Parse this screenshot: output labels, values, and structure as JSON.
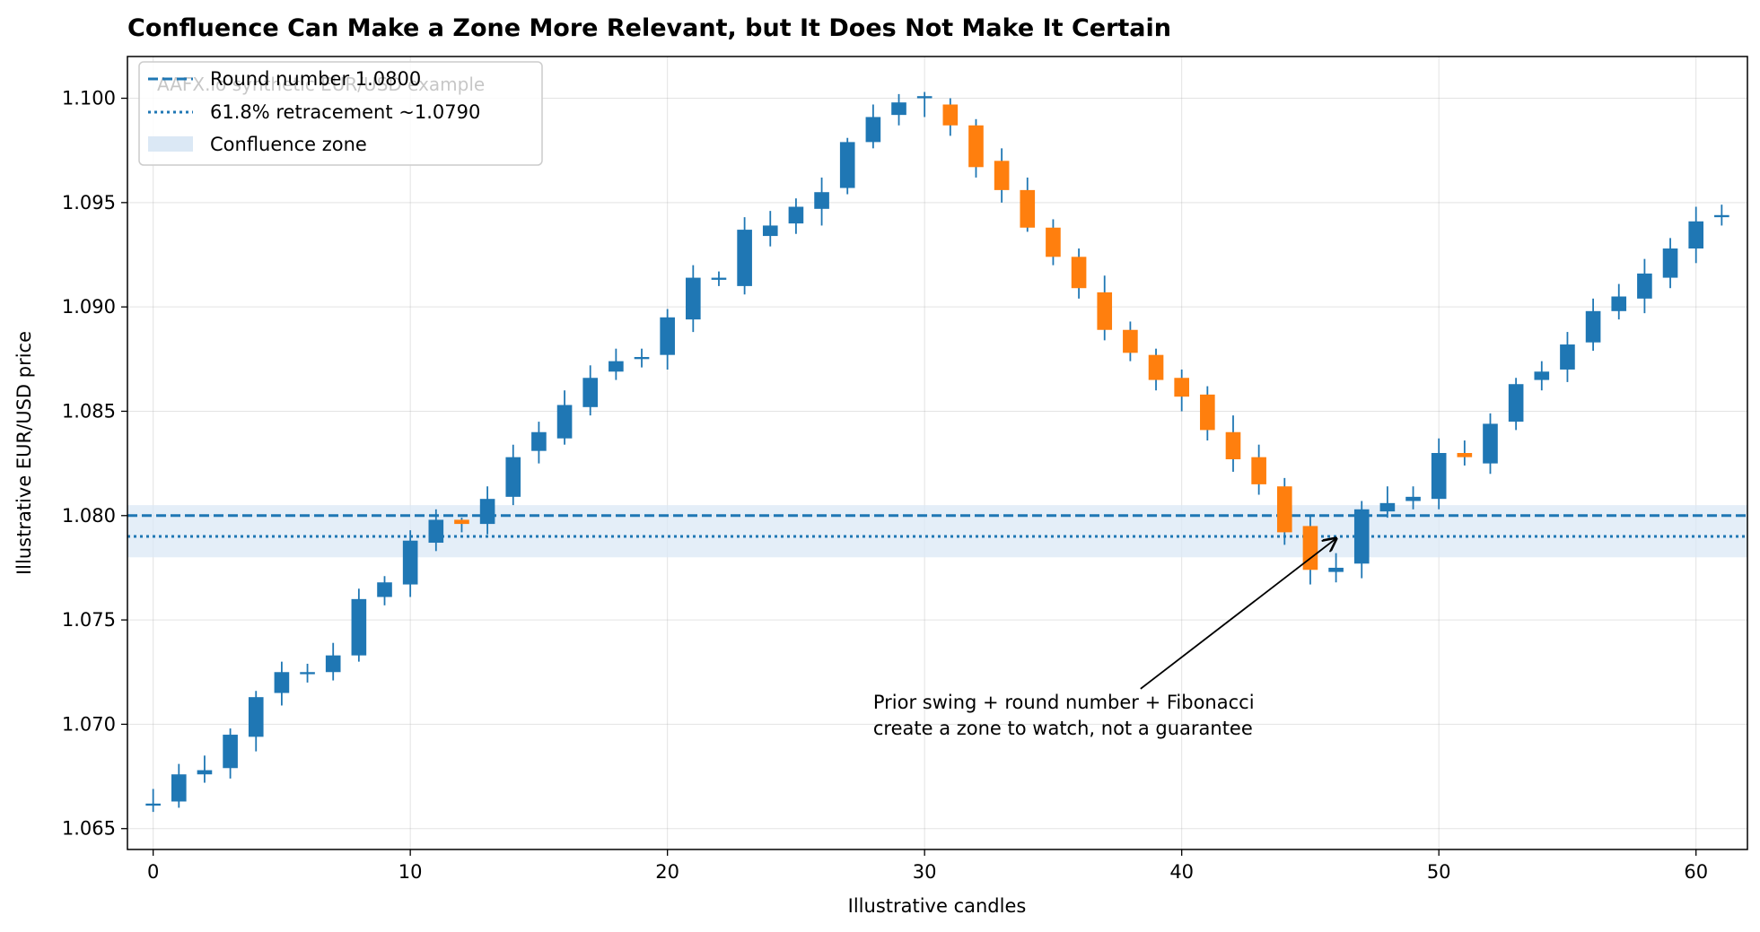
{
  "chart_data": {
    "type": "candlestick",
    "title": "Confluence Can Make a Zone More Relevant, but It Does Not Make It Certain",
    "xlabel": "Illustrative candles",
    "ylabel": "Illustrative EUR/USD price",
    "xlim": [
      -1,
      62
    ],
    "ylim": [
      1.064,
      1.102
    ],
    "x_ticks": [
      0,
      10,
      20,
      30,
      40,
      50,
      60
    ],
    "x_tick_labels": [
      "0",
      "10",
      "20",
      "30",
      "40",
      "50",
      "60"
    ],
    "y_ticks": [
      1.065,
      1.07,
      1.075,
      1.08,
      1.085,
      1.09,
      1.095,
      1.1
    ],
    "y_tick_labels": [
      "1.065",
      "1.070",
      "1.075",
      "1.080",
      "1.085",
      "1.090",
      "1.095",
      "1.100"
    ],
    "grid": true,
    "colors": {
      "up": "#1f77b4",
      "down": "#ff7f0e",
      "line": "#1f77b4",
      "zone": "#dbe8f5"
    },
    "watermark": "AAFX.io synthetic EUR/USD example",
    "legend": {
      "placement": "top-left",
      "entries": [
        {
          "label": "Round number 1.0800",
          "style": "dashed"
        },
        {
          "label": "61.8% retracement ~1.0790",
          "style": "dotted"
        },
        {
          "label": "Confluence zone",
          "style": "patch"
        }
      ]
    },
    "hlines": [
      {
        "y": 1.08,
        "style": "dashed"
      },
      {
        "y": 1.079,
        "style": "dotted"
      }
    ],
    "zone": {
      "y_low": 1.078,
      "y_high": 1.0805
    },
    "annotation": {
      "lines": [
        "Prior swing + round number + Fibonacci",
        "create a zone to watch, not a guarantee"
      ],
      "text_at": [
        28,
        1.0705
      ],
      "arrow_to": [
        46,
        1.0789
      ]
    },
    "candles": [
      {
        "x": 0,
        "o": 1.0661,
        "c": 1.0662,
        "h": 1.0669,
        "l": 1.0658
      },
      {
        "x": 1,
        "o": 1.0663,
        "c": 1.0676,
        "h": 1.0681,
        "l": 1.066
      },
      {
        "x": 2,
        "o": 1.0676,
        "c": 1.0678,
        "h": 1.0685,
        "l": 1.0672
      },
      {
        "x": 3,
        "o": 1.0679,
        "c": 1.0695,
        "h": 1.0698,
        "l": 1.0674
      },
      {
        "x": 4,
        "o": 1.0694,
        "c": 1.0713,
        "h": 1.0716,
        "l": 1.0687
      },
      {
        "x": 5,
        "o": 1.0715,
        "c": 1.0725,
        "h": 1.073,
        "l": 1.0709
      },
      {
        "x": 6,
        "o": 1.0724,
        "c": 1.0725,
        "h": 1.0729,
        "l": 1.072
      },
      {
        "x": 7,
        "o": 1.0725,
        "c": 1.0733,
        "h": 1.0739,
        "l": 1.0721
      },
      {
        "x": 8,
        "o": 1.0733,
        "c": 1.076,
        "h": 1.0765,
        "l": 1.073
      },
      {
        "x": 9,
        "o": 1.0761,
        "c": 1.0768,
        "h": 1.0771,
        "l": 1.0757
      },
      {
        "x": 10,
        "o": 1.0767,
        "c": 1.0788,
        "h": 1.0793,
        "l": 1.0761
      },
      {
        "x": 11,
        "o": 1.0787,
        "c": 1.0798,
        "h": 1.0803,
        "l": 1.0783
      },
      {
        "x": 12,
        "o": 1.0798,
        "c": 1.0796,
        "h": 1.0799,
        "l": 1.0792
      },
      {
        "x": 13,
        "o": 1.0796,
        "c": 1.0808,
        "h": 1.0814,
        "l": 1.0791
      },
      {
        "x": 14,
        "o": 1.0809,
        "c": 1.0828,
        "h": 1.0834,
        "l": 1.0805
      },
      {
        "x": 15,
        "o": 1.0831,
        "c": 1.084,
        "h": 1.0845,
        "l": 1.0825
      },
      {
        "x": 16,
        "o": 1.0837,
        "c": 1.0853,
        "h": 1.086,
        "l": 1.0834
      },
      {
        "x": 17,
        "o": 1.0852,
        "c": 1.0866,
        "h": 1.0872,
        "l": 1.0848
      },
      {
        "x": 18,
        "o": 1.0869,
        "c": 1.0874,
        "h": 1.088,
        "l": 1.0865
      },
      {
        "x": 19,
        "o": 1.0875,
        "c": 1.0876,
        "h": 1.088,
        "l": 1.0871
      },
      {
        "x": 20,
        "o": 1.0877,
        "c": 1.0895,
        "h": 1.0899,
        "l": 1.087
      },
      {
        "x": 21,
        "o": 1.0894,
        "c": 1.0914,
        "h": 1.092,
        "l": 1.0888
      },
      {
        "x": 22,
        "o": 1.0913,
        "c": 1.0914,
        "h": 1.0917,
        "l": 1.091
      },
      {
        "x": 23,
        "o": 1.091,
        "c": 1.0937,
        "h": 1.0943,
        "l": 1.0906
      },
      {
        "x": 24,
        "o": 1.0934,
        "c": 1.0939,
        "h": 1.0946,
        "l": 1.0929
      },
      {
        "x": 25,
        "o": 1.094,
        "c": 1.0948,
        "h": 1.0952,
        "l": 1.0935
      },
      {
        "x": 26,
        "o": 1.0947,
        "c": 1.0955,
        "h": 1.0962,
        "l": 1.0939
      },
      {
        "x": 27,
        "o": 1.0957,
        "c": 1.0979,
        "h": 1.0981,
        "l": 1.0954
      },
      {
        "x": 28,
        "o": 1.0979,
        "c": 1.0991,
        "h": 1.0997,
        "l": 1.0976
      },
      {
        "x": 29,
        "o": 1.0992,
        "c": 1.0998,
        "h": 1.1002,
        "l": 1.0987
      },
      {
        "x": 30,
        "o": 1.1,
        "c": 1.1001,
        "h": 1.1003,
        "l": 1.0991
      },
      {
        "x": 31,
        "o": 1.0997,
        "c": 1.0987,
        "h": 1.1,
        "l": 1.0982
      },
      {
        "x": 32,
        "o": 1.0987,
        "c": 1.0967,
        "h": 1.099,
        "l": 1.0962
      },
      {
        "x": 33,
        "o": 1.097,
        "c": 1.0956,
        "h": 1.0976,
        "l": 1.095
      },
      {
        "x": 34,
        "o": 1.0956,
        "c": 1.0938,
        "h": 1.0962,
        "l": 1.0936
      },
      {
        "x": 35,
        "o": 1.0938,
        "c": 1.0924,
        "h": 1.0942,
        "l": 1.092
      },
      {
        "x": 36,
        "o": 1.0924,
        "c": 1.0909,
        "h": 1.0928,
        "l": 1.0904
      },
      {
        "x": 37,
        "o": 1.0907,
        "c": 1.0889,
        "h": 1.0915,
        "l": 1.0884
      },
      {
        "x": 38,
        "o": 1.0889,
        "c": 1.0878,
        "h": 1.0893,
        "l": 1.0874
      },
      {
        "x": 39,
        "o": 1.0877,
        "c": 1.0865,
        "h": 1.088,
        "l": 1.086
      },
      {
        "x": 40,
        "o": 1.0866,
        "c": 1.0857,
        "h": 1.087,
        "l": 1.085
      },
      {
        "x": 41,
        "o": 1.0858,
        "c": 1.0841,
        "h": 1.0862,
        "l": 1.0836
      },
      {
        "x": 42,
        "o": 1.084,
        "c": 1.0827,
        "h": 1.0848,
        "l": 1.0821
      },
      {
        "x": 43,
        "o": 1.0828,
        "c": 1.0815,
        "h": 1.0834,
        "l": 1.081
      },
      {
        "x": 44,
        "o": 1.0814,
        "c": 1.0792,
        "h": 1.0818,
        "l": 1.0786
      },
      {
        "x": 45,
        "o": 1.0795,
        "c": 1.0774,
        "h": 1.08,
        "l": 1.0767
      },
      {
        "x": 46,
        "o": 1.0773,
        "c": 1.0775,
        "h": 1.0782,
        "l": 1.0768
      },
      {
        "x": 47,
        "o": 1.0777,
        "c": 1.0803,
        "h": 1.0807,
        "l": 1.077
      },
      {
        "x": 48,
        "o": 1.0802,
        "c": 1.0806,
        "h": 1.0814,
        "l": 1.0799
      },
      {
        "x": 49,
        "o": 1.0807,
        "c": 1.0809,
        "h": 1.0814,
        "l": 1.0803
      },
      {
        "x": 50,
        "o": 1.0808,
        "c": 1.083,
        "h": 1.0837,
        "l": 1.0803
      },
      {
        "x": 51,
        "o": 1.083,
        "c": 1.0828,
        "h": 1.0836,
        "l": 1.0824
      },
      {
        "x": 52,
        "o": 1.0825,
        "c": 1.0844,
        "h": 1.0849,
        "l": 1.082
      },
      {
        "x": 53,
        "o": 1.0845,
        "c": 1.0863,
        "h": 1.0866,
        "l": 1.0841
      },
      {
        "x": 54,
        "o": 1.0865,
        "c": 1.0869,
        "h": 1.0874,
        "l": 1.086
      },
      {
        "x": 55,
        "o": 1.087,
        "c": 1.0882,
        "h": 1.0888,
        "l": 1.0864
      },
      {
        "x": 56,
        "o": 1.0883,
        "c": 1.0898,
        "h": 1.0904,
        "l": 1.0879
      },
      {
        "x": 57,
        "o": 1.0898,
        "c": 1.0905,
        "h": 1.0911,
        "l": 1.0894
      },
      {
        "x": 58,
        "o": 1.0904,
        "c": 1.0916,
        "h": 1.0923,
        "l": 1.0897
      },
      {
        "x": 59,
        "o": 1.0914,
        "c": 1.0928,
        "h": 1.0933,
        "l": 1.0909
      },
      {
        "x": 60,
        "o": 1.0928,
        "c": 1.0941,
        "h": 1.0948,
        "l": 1.0921
      },
      {
        "x": 61,
        "o": 1.0943,
        "c": 1.0944,
        "h": 1.0949,
        "l": 1.0939
      }
    ]
  }
}
